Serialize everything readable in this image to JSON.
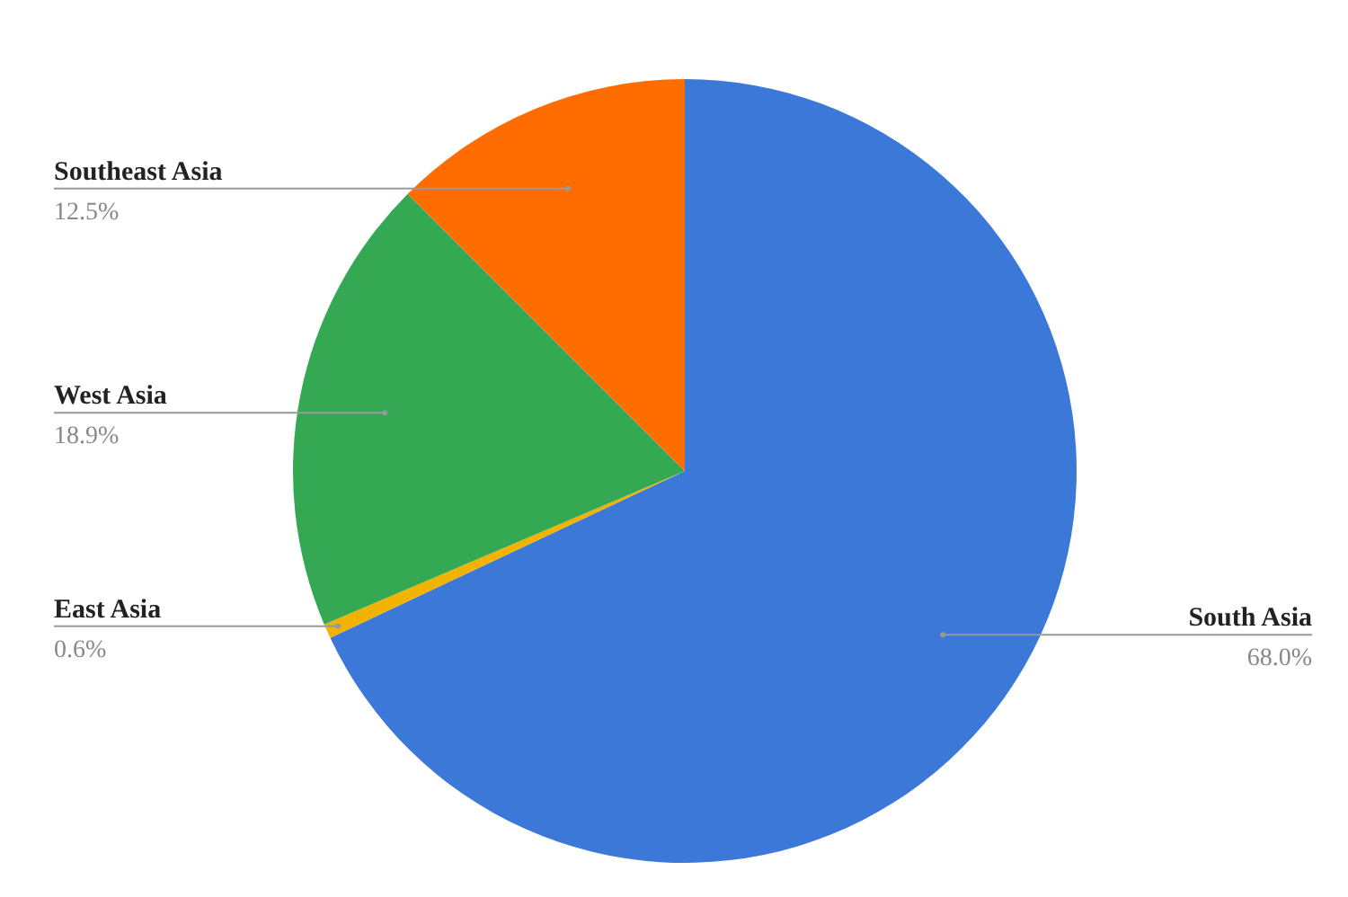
{
  "chart_data": {
    "type": "pie",
    "categories": [
      "South Asia",
      "East Asia",
      "West Asia",
      "Southeast Asia"
    ],
    "values": [
      68.0,
      0.6,
      18.9,
      12.5
    ],
    "colors": [
      "#3c78d8",
      "#f1b300",
      "#34a853",
      "#ff6d01"
    ],
    "value_labels": [
      "68.0%",
      "0.6%",
      "18.9%",
      "12.5%"
    ]
  }
}
